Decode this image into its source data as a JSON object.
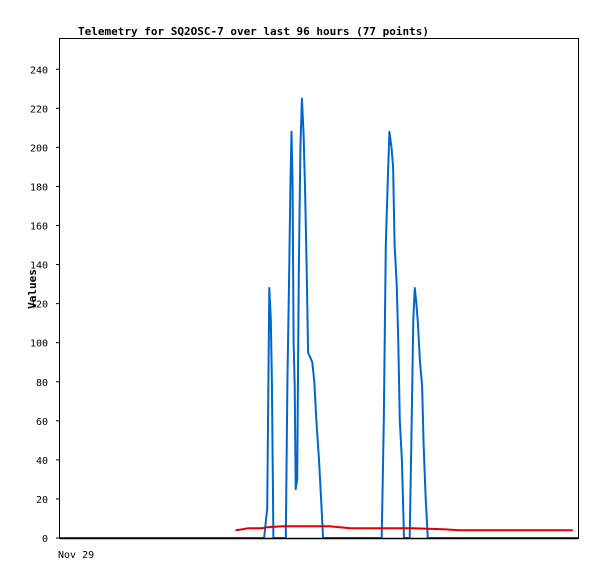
{
  "chart_data": {
    "type": "line",
    "title": "Telemetry for SQ2OSC-7 over last 96 hours (77 points)",
    "xlabel": "",
    "ylabel": "Values",
    "x_tick_labels": [
      "Nov 29"
    ],
    "y_ticks": [
      0,
      20,
      40,
      60,
      80,
      100,
      120,
      140,
      160,
      180,
      200,
      220,
      240
    ],
    "ylim": [
      0,
      256
    ],
    "grid": false,
    "legend": "none",
    "background": "#ffffff",
    "series": [
      {
        "color": "#0066cc",
        "points": [
          [
            0.0,
            0
          ],
          [
            0.394,
            0
          ],
          [
            0.4,
            15
          ],
          [
            0.404,
            128
          ],
          [
            0.407,
            112
          ],
          [
            0.409,
            80
          ],
          [
            0.412,
            0
          ],
          [
            0.436,
            0
          ],
          [
            0.439,
            80
          ],
          [
            0.442,
            130
          ],
          [
            0.445,
            183
          ],
          [
            0.447,
            208
          ],
          [
            0.449,
            180
          ],
          [
            0.451,
            100
          ],
          [
            0.453,
            78
          ],
          [
            0.455,
            25
          ],
          [
            0.458,
            30
          ],
          [
            0.461,
            136
          ],
          [
            0.464,
            200
          ],
          [
            0.467,
            225
          ],
          [
            0.47,
            208
          ],
          [
            0.473,
            180
          ],
          [
            0.476,
            140
          ],
          [
            0.479,
            95
          ],
          [
            0.487,
            90
          ],
          [
            0.491,
            80
          ],
          [
            0.495,
            60
          ],
          [
            0.5,
            40
          ],
          [
            0.504,
            20
          ],
          [
            0.508,
            0
          ],
          [
            0.621,
            0
          ],
          [
            0.625,
            60
          ],
          [
            0.629,
            150
          ],
          [
            0.633,
            185
          ],
          [
            0.636,
            208
          ],
          [
            0.64,
            200
          ],
          [
            0.643,
            190
          ],
          [
            0.646,
            150
          ],
          [
            0.65,
            130
          ],
          [
            0.653,
            100
          ],
          [
            0.656,
            60
          ],
          [
            0.66,
            40
          ],
          [
            0.664,
            0
          ],
          [
            0.675,
            0
          ],
          [
            0.679,
            60
          ],
          [
            0.682,
            112
          ],
          [
            0.685,
            128
          ],
          [
            0.688,
            120
          ],
          [
            0.691,
            110
          ],
          [
            0.695,
            90
          ],
          [
            0.699,
            78
          ],
          [
            0.702,
            48
          ],
          [
            0.706,
            20
          ],
          [
            0.71,
            0
          ],
          [
            1.0,
            0
          ]
        ]
      },
      {
        "color": "#dd0000",
        "points": [
          [
            0.339,
            4
          ],
          [
            0.353,
            4.5
          ],
          [
            0.363,
            5
          ],
          [
            0.373,
            5
          ],
          [
            0.383,
            5
          ],
          [
            0.39,
            5
          ],
          [
            0.4,
            5.5
          ],
          [
            0.43,
            6
          ],
          [
            0.48,
            6
          ],
          [
            0.52,
            6
          ],
          [
            0.56,
            5
          ],
          [
            0.62,
            5
          ],
          [
            0.68,
            5
          ],
          [
            0.74,
            4.5
          ],
          [
            0.77,
            4
          ],
          [
            0.85,
            4
          ],
          [
            0.92,
            4
          ],
          [
            0.99,
            4
          ]
        ]
      }
    ]
  }
}
